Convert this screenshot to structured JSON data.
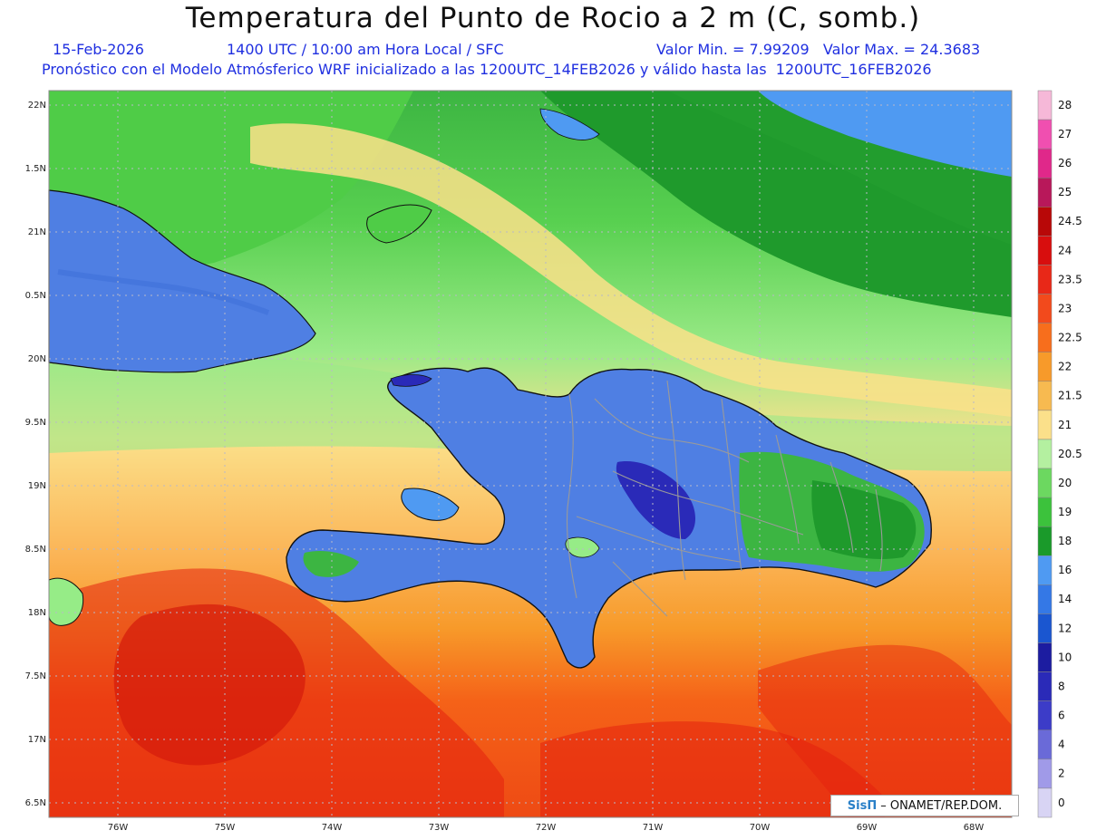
{
  "title": "Temperatura del Punto de Rocio a 2 m (C, somb.)",
  "date": "15-Feb-2026",
  "time_info": "1400 UTC / 10:00 am Hora Local / SFC",
  "value_range": "Valor Min. = 7.99209   Valor Max. = 24.3683",
  "forecast_info": "Pronóstico con el Modelo Atmósferico WRF inicializado a las 1200UTC_14FEB2026 y válido hasta las  1200UTC_16FEB2026",
  "map": {
    "lat_labels": [
      "22N",
      "1.5N",
      "21N",
      "0.5N",
      "20N",
      "9.5N",
      "19N",
      "8.5N",
      "18N",
      "7.5N",
      "17N",
      "6.5N"
    ],
    "lon_labels": [
      "76W",
      "75W",
      "74W",
      "73W",
      "72W",
      "71W",
      "70W",
      "69W",
      "68W"
    ],
    "colors": {
      "ocean_cold": "#4f9af2",
      "land_blue": "#4f7fe3",
      "green_dark": "#1f9a2c",
      "green": "#4fcc47",
      "green_light": "#96ec87",
      "yellow": "#fbe08a",
      "orange_light": "#fbb456",
      "orange": "#f79a2a",
      "orange_red": "#f56218",
      "red": "#e4200e"
    }
  },
  "colorbar": {
    "labels": [
      "28",
      "27",
      "26",
      "25",
      "24.5",
      "24",
      "23.5",
      "23",
      "22.5",
      "22",
      "21.5",
      "21",
      "20.5",
      "20",
      "19",
      "18",
      "16",
      "14",
      "12",
      "10",
      "8",
      "6",
      "4",
      "2",
      "0"
    ],
    "colors": [
      "#f6b8d8",
      "#f04fb0",
      "#e0288a",
      "#b8185a",
      "#b80808",
      "#d80e0e",
      "#e82818",
      "#f24a1c",
      "#f76e1c",
      "#f79a2a",
      "#f7ba50",
      "#fbe08a",
      "#b4f0a0",
      "#6cd860",
      "#3cc23c",
      "#1a9a2a",
      "#4f9af2",
      "#3478e6",
      "#1a56d0",
      "#1c1ca0",
      "#2a2ab8",
      "#3c3cc8",
      "#6a6ad8",
      "#a09ae8",
      "#d8d4f4"
    ]
  },
  "footer": {
    "brand": "SisΠ",
    "credit": "– ONAMET/REP.DOM."
  }
}
